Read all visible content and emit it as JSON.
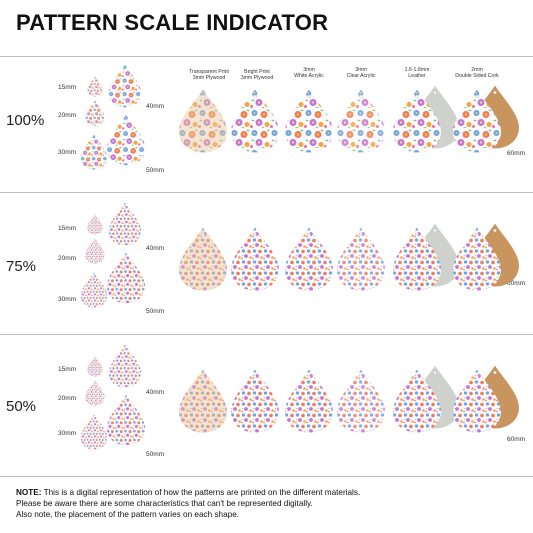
{
  "title": "PATTERN SCALE INDICATOR",
  "sections": [
    {
      "scale": "100%"
    },
    {
      "scale": "75%"
    },
    {
      "scale": "50%"
    }
  ],
  "sizes": {
    "s15": "15mm",
    "s20": "20mm",
    "s30": "30mm",
    "s40": "40mm",
    "s50": "50mm",
    "s60": "60mm"
  },
  "materials": [
    {
      "line1": "Transparent Print",
      "line2": "3mm Plywood"
    },
    {
      "line1": "Bright Print",
      "line2": "3mm Plywood"
    },
    {
      "line1": "3mm",
      "line2": "White Acrylic"
    },
    {
      "line1": "3mm",
      "line2": "Clear Acrylic"
    },
    {
      "line1": "1.6-1.8mm",
      "line2": "Leather"
    },
    {
      "line1": "2mm",
      "line2": "Double Sided Cork"
    }
  ],
  "note": {
    "label": "NOTE:",
    "line1": "This is a digital representation of how the patterns are printed on the different materials.",
    "line2": "Please be aware there are some characteristics that can't be represented digitally.",
    "line3": "Also note, the placement of the pattern varies on each shape."
  },
  "colors": {
    "plywood": "#e9c9a0",
    "leather": "#cfd2cc",
    "cork": "#c8955e",
    "separator": "#bdbdbd"
  }
}
